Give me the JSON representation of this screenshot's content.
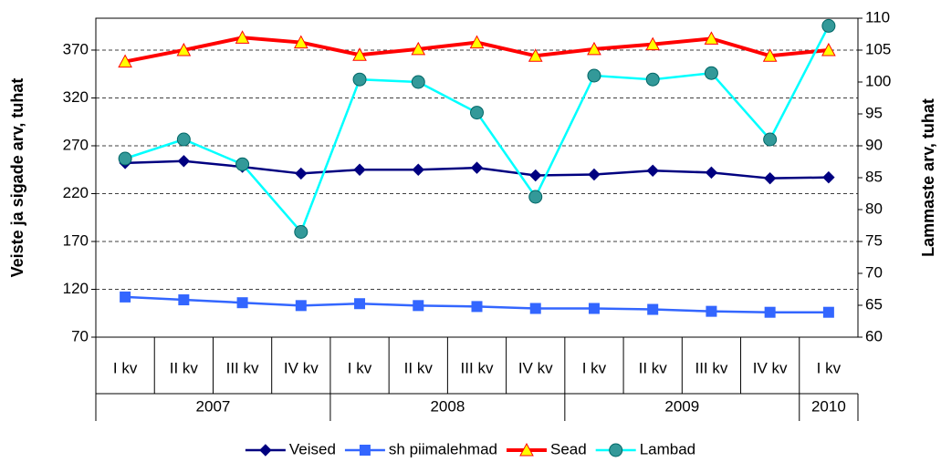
{
  "chart_data": {
    "type": "line",
    "y_label": "Veiste ja sigade arv, tuhat",
    "y2_label": "Lammaste arv, tuhat",
    "categories": [
      "I kv",
      "II kv",
      "III kv",
      "IV kv",
      "I kv",
      "II kv",
      "III kv",
      "IV kv",
      "I kv",
      "II kv",
      "III kv",
      "IV kv",
      "I kv"
    ],
    "groups": [
      {
        "label": "2007",
        "count": 4
      },
      {
        "label": "2008",
        "count": 4
      },
      {
        "label": "2009",
        "count": 4
      },
      {
        "label": "2010",
        "count": 1
      }
    ],
    "ylim": [
      70,
      403.3
    ],
    "yticks": [
      70,
      120,
      170,
      220,
      270,
      320,
      370
    ],
    "y2lim": [
      60,
      110
    ],
    "y2ticks": [
      60,
      65,
      70,
      75,
      80,
      85,
      90,
      95,
      100,
      105,
      110
    ],
    "grid": true,
    "legend": "bottom",
    "series": [
      {
        "name": "Veised",
        "color": "#000080",
        "marker": "diamond",
        "marker_fill": "#000080",
        "values": [
          252,
          254,
          248,
          241,
          245,
          245,
          247,
          239,
          240,
          244,
          242,
          236,
          237
        ]
      },
      {
        "name": "sh piimalehmad",
        "color": "#3366ff",
        "marker": "square",
        "marker_fill": "#3366ff",
        "values": [
          112,
          109,
          106,
          103,
          105,
          103,
          102,
          100,
          100,
          99,
          97,
          96,
          96
        ]
      },
      {
        "name": "Sead",
        "color": "#ff0000",
        "marker": "triangle",
        "marker_fill": "#ffff00",
        "values": [
          358,
          370,
          383,
          378,
          365,
          371,
          378,
          364,
          371,
          376,
          382,
          364,
          370
        ]
      },
      {
        "name": "Lambad",
        "color": "#00ffff",
        "marker": "circle",
        "marker_fill": "#339999",
        "axis": "y2",
        "values": [
          88.0,
          91.0,
          87.1,
          76.5,
          100.4,
          100.0,
          95.2,
          82.0,
          101.0,
          100.4,
          101.4,
          91.0,
          108.8
        ]
      }
    ]
  }
}
